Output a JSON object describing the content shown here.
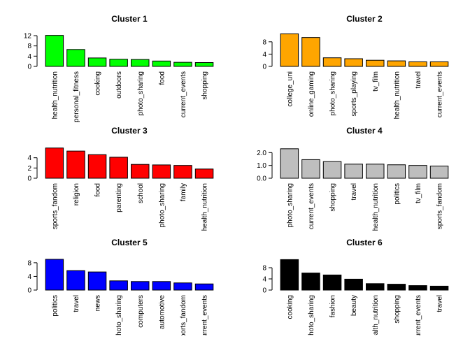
{
  "chart_data": [
    {
      "type": "bar",
      "title": "Cluster 1",
      "color": "#00FF00",
      "categories": [
        "health_nutrition",
        "personal_fitness",
        "cooking",
        "outdoors",
        "photo_sharing",
        "food",
        "current_events",
        "shopping"
      ],
      "values": [
        12.1,
        6.6,
        3.3,
        2.8,
        2.7,
        2.1,
        1.6,
        1.5
      ],
      "ylim": [
        0,
        12
      ],
      "yticks": [
        0,
        4,
        8,
        12
      ],
      "ytick_labels": [
        "0",
        "4",
        "8",
        "12"
      ]
    },
    {
      "type": "bar",
      "title": "Cluster 2",
      "color": "#FFA500",
      "categories": [
        "college_uni",
        "online_gaming",
        "photo_sharing",
        "sports_playing",
        "tv_film",
        "health_nutrition",
        "travel",
        "current_events"
      ],
      "values": [
        10.6,
        9.4,
        2.8,
        2.5,
        2.0,
        1.8,
        1.5,
        1.5
      ],
      "ylim": [
        0,
        10
      ],
      "yticks": [
        0,
        4,
        8
      ],
      "ytick_labels": [
        "0",
        "4",
        "8"
      ]
    },
    {
      "type": "bar",
      "title": "Cluster 3",
      "color": "#FF0000",
      "categories": [
        "sports_fandom",
        "religion",
        "food",
        "parenting",
        "school",
        "photo_sharing",
        "family",
        "health_nutrition"
      ],
      "values": [
        5.9,
        5.3,
        4.6,
        4.1,
        2.7,
        2.6,
        2.5,
        1.8
      ],
      "ylim": [
        0,
        6
      ],
      "yticks": [
        0,
        2,
        4
      ],
      "ytick_labels": [
        "0",
        "2",
        "4"
      ]
    },
    {
      "type": "bar",
      "title": "Cluster 4",
      "color": "#BEBEBE",
      "categories": [
        "photo_sharing",
        "current_events",
        "shopping",
        "travel",
        "health_nutrition",
        "politics",
        "tv_film",
        "sports_fandom"
      ],
      "values": [
        2.3,
        1.45,
        1.3,
        1.1,
        1.1,
        1.05,
        1.0,
        0.95
      ],
      "ylim": [
        0,
        2.4
      ],
      "yticks": [
        0.0,
        1.0,
        2.0
      ],
      "ytick_labels": [
        "0.0",
        "1.0",
        "2.0"
      ]
    },
    {
      "type": "bar",
      "title": "Cluster 5",
      "color": "#0000FF",
      "categories": [
        "politics",
        "travel",
        "news",
        "photo_sharing",
        "computers",
        "automotive",
        "sports_fandom",
        "current_events"
      ],
      "values": [
        9.0,
        5.7,
        5.3,
        2.7,
        2.5,
        2.5,
        2.1,
        1.8
      ],
      "ylim": [
        0,
        9
      ],
      "yticks": [
        0,
        4,
        8
      ],
      "ytick_labels": [
        "0",
        "4",
        "8"
      ]
    },
    {
      "type": "bar",
      "title": "Cluster 6",
      "color": "#000000",
      "categories": [
        "cooking",
        "photo_sharing",
        "fashion",
        "beauty",
        "health_nutrition",
        "shopping",
        "current_events",
        "travel"
      ],
      "values": [
        10.9,
        6.1,
        5.4,
        3.9,
        2.3,
        2.1,
        1.6,
        1.4
      ],
      "ylim": [
        0,
        11
      ],
      "yticks": [
        0,
        4,
        8
      ],
      "ytick_labels": [
        "0",
        "4",
        "8"
      ]
    }
  ]
}
